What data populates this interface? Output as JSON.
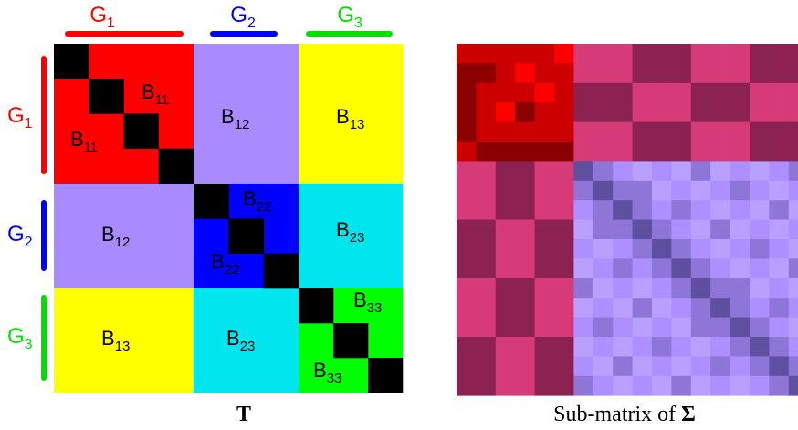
{
  "groups": [
    {
      "name": "G",
      "sub": "1",
      "color": "#ff0000"
    },
    {
      "name": "G",
      "sub": "2",
      "color": "#0000ff"
    },
    {
      "name": "G",
      "sub": "3",
      "color": "#00e000"
    }
  ],
  "left_matrix": {
    "caption": "T",
    "colors": {
      "diag_block_1": "#ff0000",
      "diag_block_2": "#0000ff",
      "diag_block_3": "#00ff00",
      "b12": "#a98bff",
      "b13": "#ffff00",
      "b23": "#00e5ee",
      "diag_cell": "#000000"
    },
    "block_labels": [
      {
        "base": "B",
        "sub": "11"
      },
      {
        "base": "B",
        "sub": "11"
      },
      {
        "base": "B",
        "sub": "12"
      },
      {
        "base": "B",
        "sub": "13"
      },
      {
        "base": "B",
        "sub": "12"
      },
      {
        "base": "B",
        "sub": "22"
      },
      {
        "base": "B",
        "sub": "22"
      },
      {
        "base": "B",
        "sub": "23"
      },
      {
        "base": "B",
        "sub": "13"
      },
      {
        "base": "B",
        "sub": "23"
      },
      {
        "base": "B",
        "sub": "33"
      },
      {
        "base": "B",
        "sub": "33"
      }
    ]
  },
  "right_matrix": {
    "caption_text": "Sub-matrix of ",
    "caption_symbol": "Σ",
    "colors": {
      "red_dark": "#8b0000",
      "red_mid": "#cc0000",
      "red_light": "#ff0000",
      "pink": "#d63a77",
      "maroon": "#8b2252",
      "lav_dark": "#5e4fa0",
      "lav_mid": "#8e75d8",
      "lav_light": "#ad8fff",
      "lav_pale": "#b9a0ff"
    }
  }
}
